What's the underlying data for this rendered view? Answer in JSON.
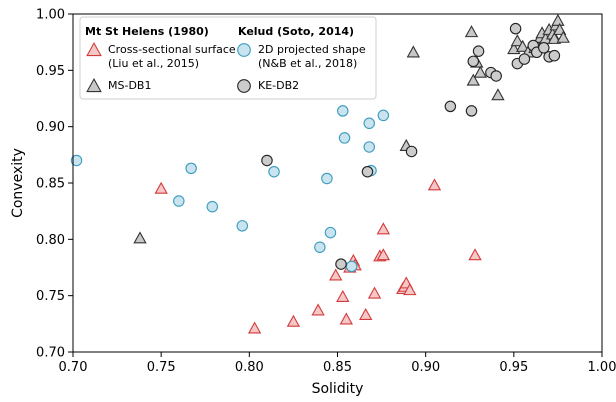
{
  "chart_data": {
    "type": "scatter",
    "xlabel": "Solidity",
    "ylabel": "Convexity",
    "xlim": [
      0.7,
      1.0
    ],
    "ylim": [
      0.7,
      1.0
    ],
    "xticks": [
      "0.70",
      "0.75",
      "0.80",
      "0.85",
      "0.90",
      "0.95",
      "1.00"
    ],
    "yticks": [
      "0.70",
      "0.75",
      "0.80",
      "0.85",
      "0.90",
      "0.95",
      "1.00"
    ],
    "grid": false,
    "legend": {
      "placement": "top-left",
      "groups": [
        {
          "heading": "Mt St Helens (1980)",
          "entries": [
            {
              "label_lines": [
                "Cross-sectional surface",
                "(Liu et al., 2015)"
              ],
              "series": 0
            },
            {
              "label_lines": [
                "MS-DB1"
              ],
              "series": 1
            }
          ]
        },
        {
          "heading": "Kelud (Soto, 2014)",
          "entries": [
            {
              "label_lines": [
                "2D projected shape",
                "(N&B et al., 2018)"
              ],
              "series": 2
            },
            {
              "label_lines": [
                "KE-DB2"
              ],
              "series": 3
            }
          ]
        }
      ]
    },
    "series": [
      {
        "name": "Cross-sectional surface (Liu et al., 2015)",
        "marker": "triangle",
        "fill": "#f6c7c7",
        "edge": "#d43a3a",
        "points": [
          [
            0.75,
            0.845
          ],
          [
            0.803,
            0.721
          ],
          [
            0.825,
            0.727
          ],
          [
            0.839,
            0.737
          ],
          [
            0.849,
            0.768
          ],
          [
            0.853,
            0.749
          ],
          [
            0.855,
            0.729
          ],
          [
            0.857,
            0.775
          ],
          [
            0.859,
            0.781
          ],
          [
            0.86,
            0.777
          ],
          [
            0.866,
            0.733
          ],
          [
            0.871,
            0.752
          ],
          [
            0.874,
            0.785
          ],
          [
            0.876,
            0.786
          ],
          [
            0.876,
            0.809
          ],
          [
            0.887,
            0.756
          ],
          [
            0.888,
            0.758
          ],
          [
            0.889,
            0.761
          ],
          [
            0.891,
            0.755
          ],
          [
            0.905,
            0.848
          ],
          [
            0.928,
            0.786
          ]
        ]
      },
      {
        "name": "MS-DB1",
        "marker": "triangle",
        "fill": "#c8c8c8",
        "edge": "#333333",
        "points": [
          [
            0.738,
            0.801
          ],
          [
            0.889,
            0.883
          ],
          [
            0.893,
            0.966
          ],
          [
            0.926,
            0.984
          ],
          [
            0.927,
            0.941
          ],
          [
            0.929,
            0.957
          ],
          [
            0.931,
            0.948
          ],
          [
            0.941,
            0.928
          ],
          [
            0.95,
            0.969
          ],
          [
            0.952,
            0.976
          ],
          [
            0.955,
            0.971
          ],
          [
            0.958,
            0.966
          ],
          [
            0.962,
            0.97
          ],
          [
            0.963,
            0.973
          ],
          [
            0.965,
            0.979
          ],
          [
            0.966,
            0.983
          ],
          [
            0.968,
            0.978
          ],
          [
            0.97,
            0.986
          ],
          [
            0.972,
            0.982
          ],
          [
            0.973,
            0.978
          ],
          [
            0.974,
            0.99
          ],
          [
            0.975,
            0.994
          ],
          [
            0.976,
            0.986
          ],
          [
            0.978,
            0.979
          ]
        ]
      },
      {
        "name": "2D projected shape (N&B et al., 2018)",
        "marker": "circle",
        "fill": "#c9e4ef",
        "edge": "#3b9cbf",
        "points": [
          [
            0.702,
            0.87
          ],
          [
            0.76,
            0.834
          ],
          [
            0.767,
            0.863
          ],
          [
            0.779,
            0.829
          ],
          [
            0.796,
            0.812
          ],
          [
            0.814,
            0.86
          ],
          [
            0.84,
            0.793
          ],
          [
            0.844,
            0.854
          ],
          [
            0.846,
            0.806
          ],
          [
            0.853,
            0.914
          ],
          [
            0.854,
            0.89
          ],
          [
            0.858,
            0.776
          ],
          [
            0.868,
            0.903
          ],
          [
            0.868,
            0.882
          ],
          [
            0.869,
            0.861
          ],
          [
            0.876,
            0.91
          ]
        ]
      },
      {
        "name": "KE-DB2",
        "marker": "circle",
        "fill": "#cccccc",
        "edge": "#222222",
        "points": [
          [
            0.81,
            0.87
          ],
          [
            0.852,
            0.778
          ],
          [
            0.867,
            0.86
          ],
          [
            0.892,
            0.878
          ],
          [
            0.914,
            0.918
          ],
          [
            0.926,
            0.914
          ],
          [
            0.927,
            0.958
          ],
          [
            0.93,
            0.967
          ],
          [
            0.937,
            0.948
          ],
          [
            0.94,
            0.945
          ],
          [
            0.951,
            0.987
          ],
          [
            0.952,
            0.956
          ],
          [
            0.956,
            0.96
          ],
          [
            0.961,
            0.972
          ],
          [
            0.963,
            0.966
          ],
          [
            0.967,
            0.97
          ],
          [
            0.97,
            0.962
          ],
          [
            0.973,
            0.963
          ]
        ]
      }
    ]
  }
}
